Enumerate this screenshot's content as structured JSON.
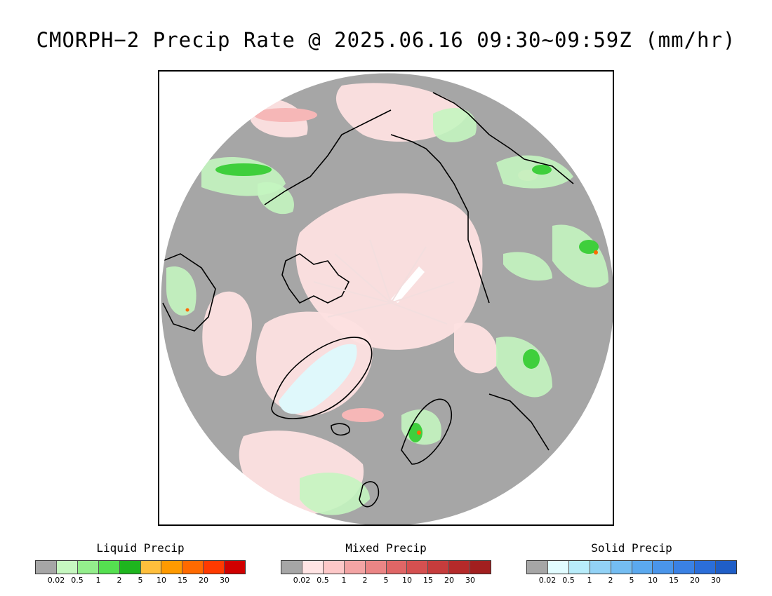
{
  "title": "CMORPH−2 Precip Rate @ 2025.06.16 09:30~09:59Z (mm/hr)",
  "colors": {
    "ocean_no_precip": "#a6a6a6",
    "liquid_light": "#c4f5c0",
    "liquid_mid": "#8ce888",
    "liquid_heavy": "#3fcf3c",
    "mixed_light": "#fde0e0",
    "mixed_mid": "#f6b7b7",
    "solid_light": "#dff8fb",
    "coastline": "#000000"
  },
  "legends": [
    {
      "name": "Liquid Precip",
      "colors": [
        "#a6a6a6",
        "#c6f7c0",
        "#94ee8c",
        "#55e050",
        "#1eb51e",
        "#ffbf3c",
        "#ff9a00",
        "#ff6a00",
        "#ff3a00",
        "#d00000"
      ],
      "ticks": [
        "0.02",
        "0.5",
        "1",
        "2",
        "5",
        "10",
        "15",
        "20",
        "30"
      ]
    },
    {
      "name": "Mixed Precip",
      "colors": [
        "#a6a6a6",
        "#ffe4e4",
        "#fdc8c8",
        "#f3a4a4",
        "#eb8585",
        "#e06666",
        "#d55050",
        "#c63c3c",
        "#b52a2a",
        "#a21f1f"
      ],
      "ticks": [
        "0.02",
        "0.5",
        "1",
        "2",
        "5",
        "10",
        "15",
        "20",
        "30"
      ]
    },
    {
      "name": "Solid Precip",
      "colors": [
        "#a6a6a6",
        "#e2fcff",
        "#b8ecfa",
        "#92d2f6",
        "#74bdf2",
        "#5ba9ef",
        "#4a95ea",
        "#3a81e4",
        "#2b6ed9",
        "#1f5ec7"
      ],
      "ticks": [
        "0.02",
        "0.5",
        "1",
        "2",
        "5",
        "10",
        "15",
        "20",
        "30"
      ]
    }
  ]
}
